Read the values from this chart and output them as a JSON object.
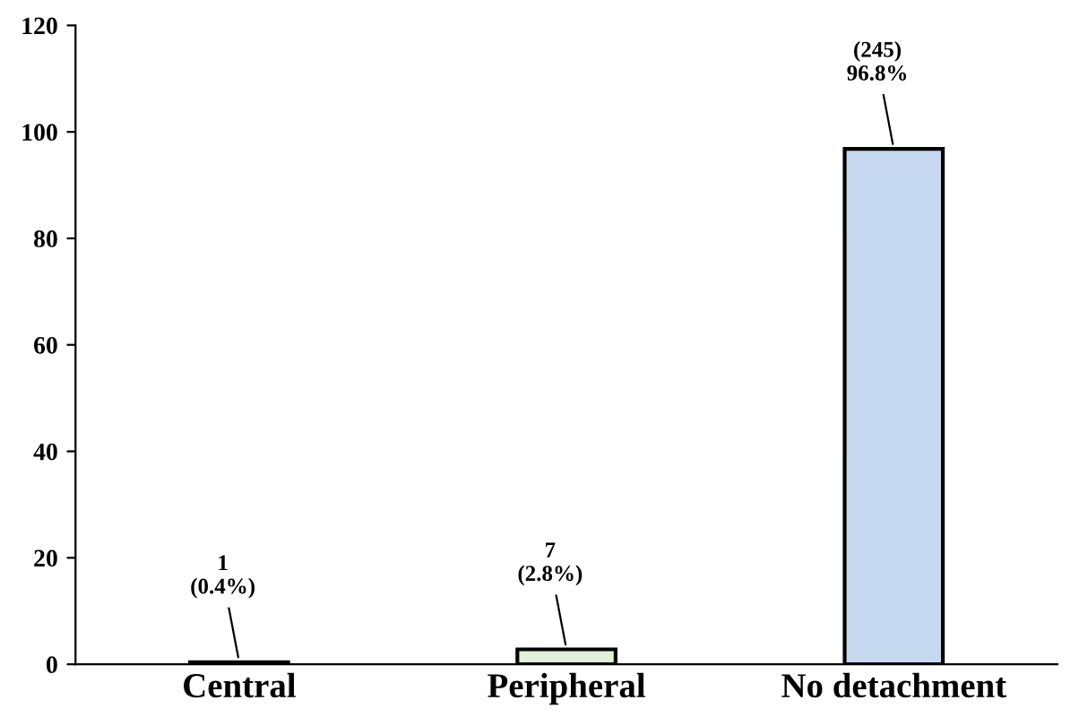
{
  "chart_data": {
    "type": "bar",
    "categories": [
      "Central",
      "Peripheral",
      "No detachment"
    ],
    "values": [
      0.4,
      2.8,
      96.8
    ],
    "colors": [
      "#c6d9f1",
      "#e2efd9",
      "#c6d9f1"
    ],
    "value_labels": [
      "1\n(0.4%)",
      "7\n(2.8%)",
      "(245)\n96.8%"
    ],
    "ylim": [
      0,
      120
    ],
    "yticks": [
      0,
      20,
      40,
      60,
      80,
      100,
      120
    ],
    "grid": false
  }
}
